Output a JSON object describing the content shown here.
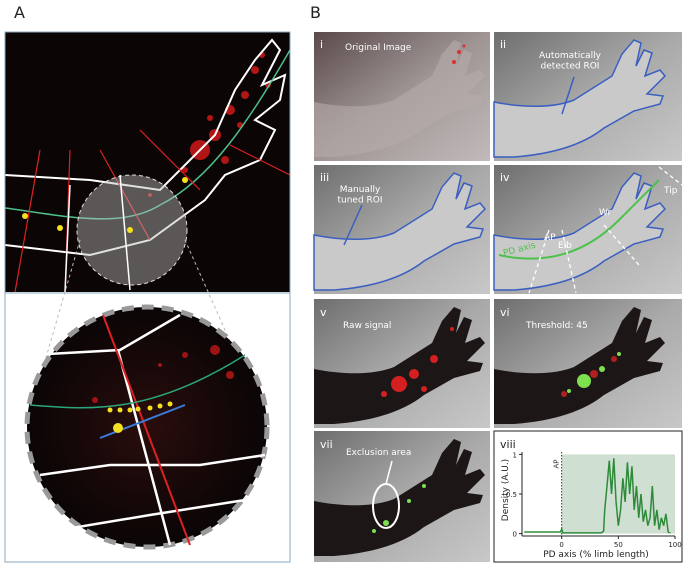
{
  "panel_a": {
    "label": "A"
  },
  "panel_b": {
    "label": "B",
    "panels": [
      {
        "numeral": "i",
        "caption": "Original Image"
      },
      {
        "numeral": "ii",
        "caption": "Automatically\ndetected ROI"
      },
      {
        "numeral": "iii",
        "caption": "Manually\ntuned ROI"
      },
      {
        "numeral": "iv",
        "labels": [
          "PD axis",
          "AP",
          "Elb",
          "Wr",
          "Tip"
        ]
      },
      {
        "numeral": "v",
        "caption": "Raw signal"
      },
      {
        "numeral": "vi",
        "caption": "Threshold: 45"
      },
      {
        "numeral": "vii",
        "caption": "Exclusion area"
      },
      {
        "numeral": "viii"
      }
    ]
  },
  "chart_data": {
    "type": "line",
    "ylabel": "Density (A.U.)",
    "xlabel": "PD axis (% limb length)",
    "x": [
      -33,
      -30,
      -25,
      -20,
      -15,
      -10,
      -5,
      -1,
      0,
      1,
      5,
      10,
      15,
      20,
      25,
      30,
      35,
      37,
      38,
      40,
      42,
      44,
      46,
      48,
      50,
      52,
      54,
      56,
      58,
      60,
      62,
      64,
      66,
      68,
      70,
      72,
      74,
      76,
      78,
      80,
      82,
      84,
      86,
      88,
      90,
      92,
      94,
      96
    ],
    "values": [
      0.02,
      0.02,
      0.02,
      0.02,
      0.02,
      0.02,
      0.02,
      0.02,
      0.06,
      0.01,
      0.01,
      0.01,
      0.01,
      0.01,
      0.01,
      0.01,
      0.01,
      0.03,
      0.3,
      0.6,
      0.92,
      0.5,
      0.95,
      0.4,
      0.1,
      0.3,
      0.7,
      0.4,
      0.9,
      0.5,
      0.85,
      0.3,
      0.6,
      0.2,
      0.5,
      0.15,
      0.3,
      0.1,
      0.2,
      0.6,
      0.1,
      0.3,
      0.05,
      0.2,
      0.1,
      0.25,
      0.02,
      0.01
    ],
    "color": "#2e8b3a",
    "xlim": [
      -35,
      100
    ],
    "ylim": [
      -0.03,
      1.03
    ],
    "xticks": [
      0,
      50,
      100
    ],
    "yticks": [
      0,
      0.5,
      1
    ],
    "shade": [
      0,
      100
    ],
    "shade_color": "#cfe0d2",
    "marker": {
      "x": 0,
      "label": "AP"
    }
  }
}
